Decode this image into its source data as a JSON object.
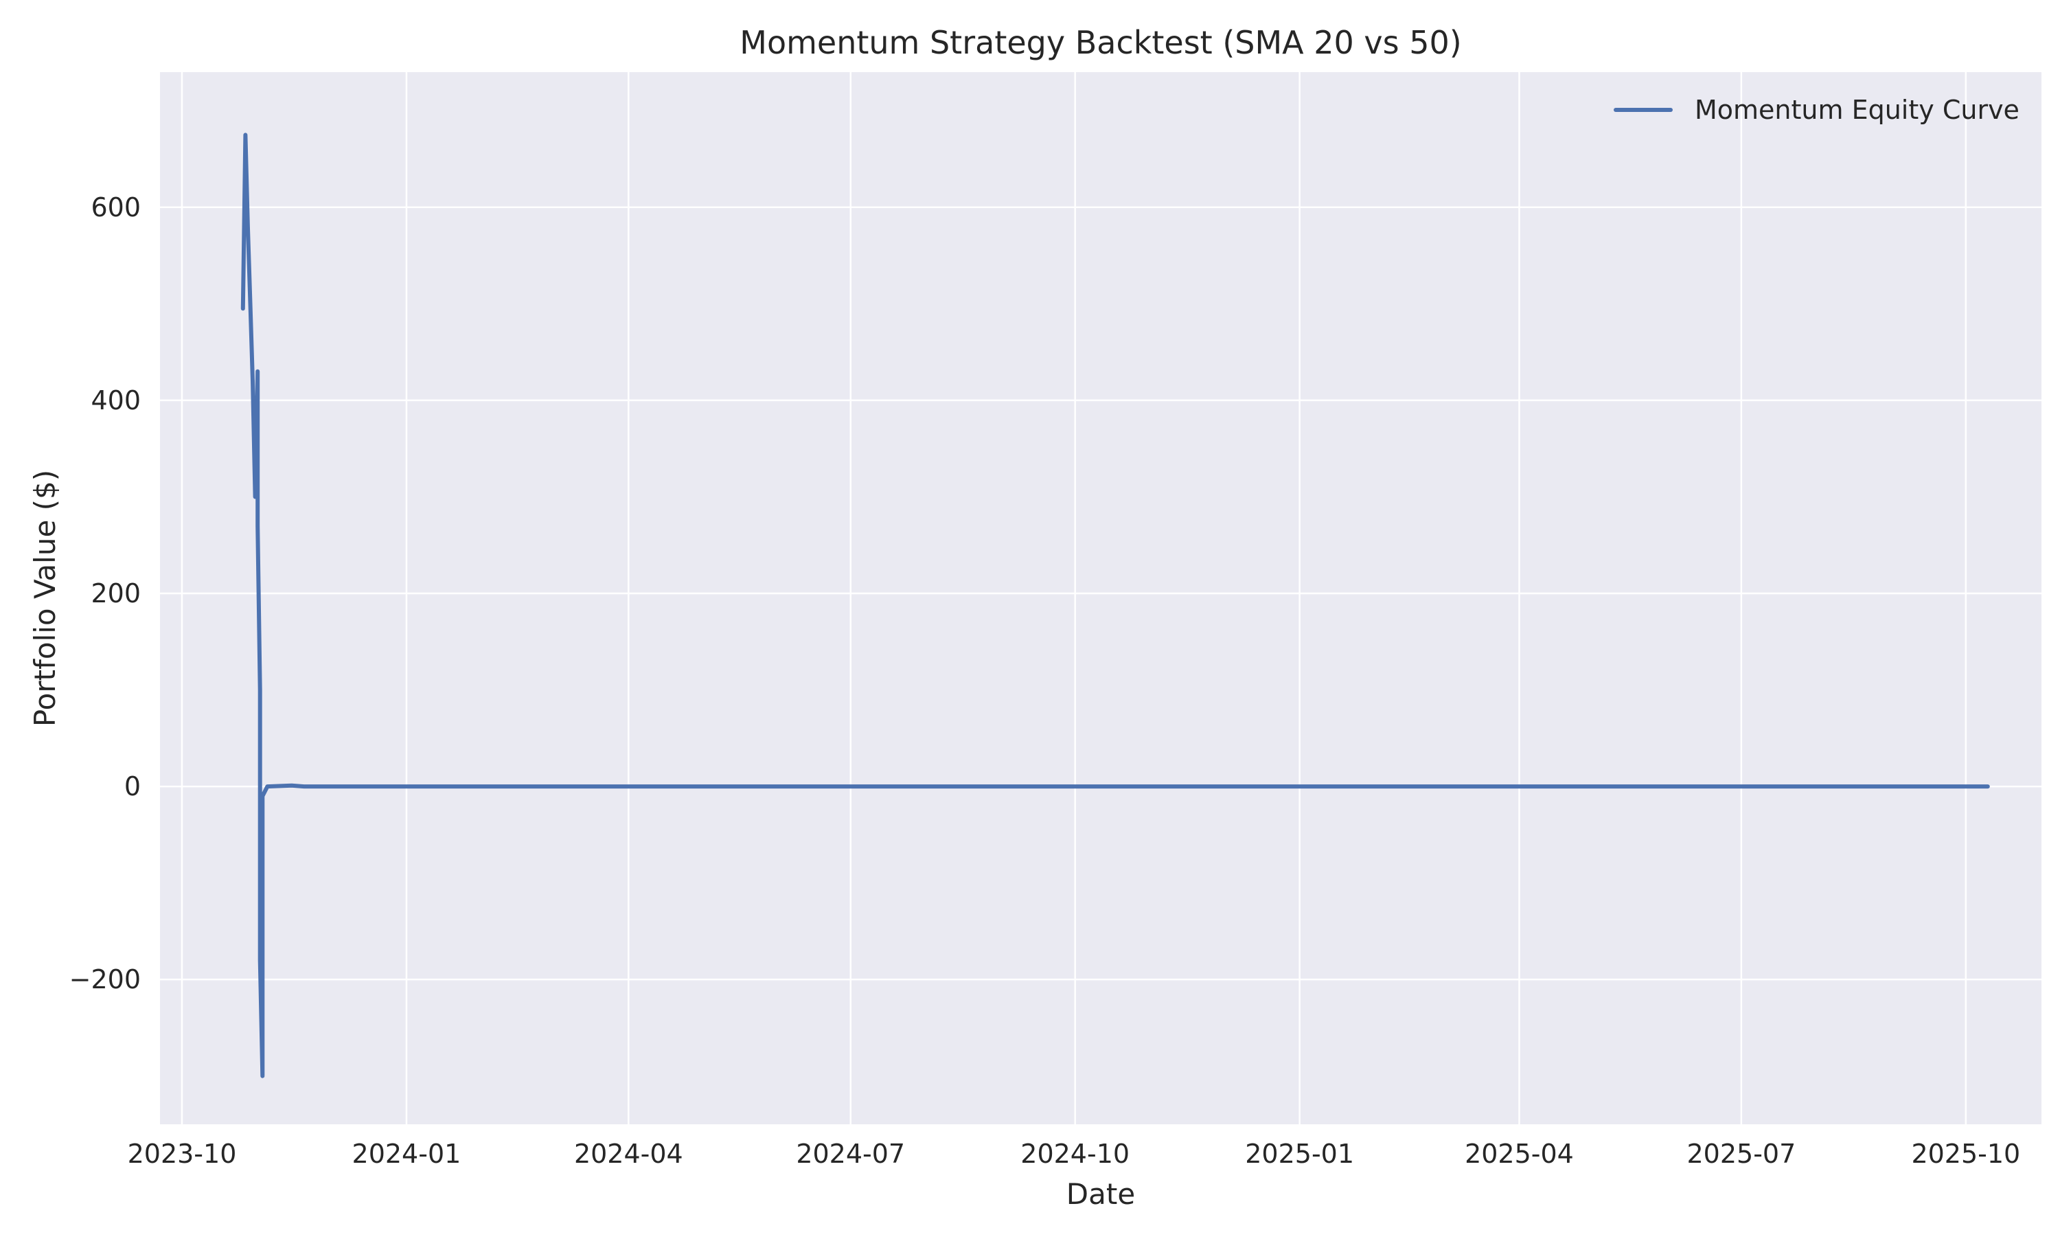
{
  "chart_data": {
    "type": "line",
    "title": "Momentum Strategy Backtest (SMA 20 vs 50)",
    "xlabel": "Date",
    "ylabel": "Portfolio Value ($)",
    "xlim": [
      "2023-09-22",
      "2025-11-01"
    ],
    "ylim": [
      -350,
      740
    ],
    "x_ticks": [
      "2023-10-01",
      "2024-01-01",
      "2024-04-01",
      "2024-07-01",
      "2024-10-01",
      "2025-01-01",
      "2025-04-01",
      "2025-07-01",
      "2025-10-01"
    ],
    "x_tick_labels": [
      "2023-10",
      "2024-01",
      "2024-04",
      "2024-07",
      "2024-10",
      "2025-01",
      "2025-04",
      "2025-07",
      "2025-10"
    ],
    "y_ticks": [
      -200,
      0,
      200,
      400,
      600
    ],
    "y_tick_labels": [
      "−200",
      "0",
      "200",
      "400",
      "600"
    ],
    "grid": true,
    "legend_position": "top-right",
    "series": [
      {
        "name": "Momentum Equity Curve",
        "color": "#4c72b0",
        "points": [
          {
            "x": "2023-10-26",
            "y": 495
          },
          {
            "x": "2023-10-27",
            "y": 675
          },
          {
            "x": "2023-10-28",
            "y": 580
          },
          {
            "x": "2023-10-29",
            "y": 500
          },
          {
            "x": "2023-10-30",
            "y": 420
          },
          {
            "x": "2023-10-31",
            "y": 300
          },
          {
            "x": "2023-11-01",
            "y": 430
          },
          {
            "x": "2023-11-01",
            "y": 270
          },
          {
            "x": "2023-11-02",
            "y": 100
          },
          {
            "x": "2023-11-02",
            "y": -180
          },
          {
            "x": "2023-11-03",
            "y": -300
          },
          {
            "x": "2023-11-03",
            "y": -10
          },
          {
            "x": "2023-11-05",
            "y": 0
          },
          {
            "x": "2023-11-15",
            "y": 1
          },
          {
            "x": "2023-11-20",
            "y": 0
          },
          {
            "x": "2024-06-01",
            "y": 0
          },
          {
            "x": "2025-01-01",
            "y": 0
          },
          {
            "x": "2025-10-10",
            "y": 0
          }
        ]
      }
    ]
  }
}
